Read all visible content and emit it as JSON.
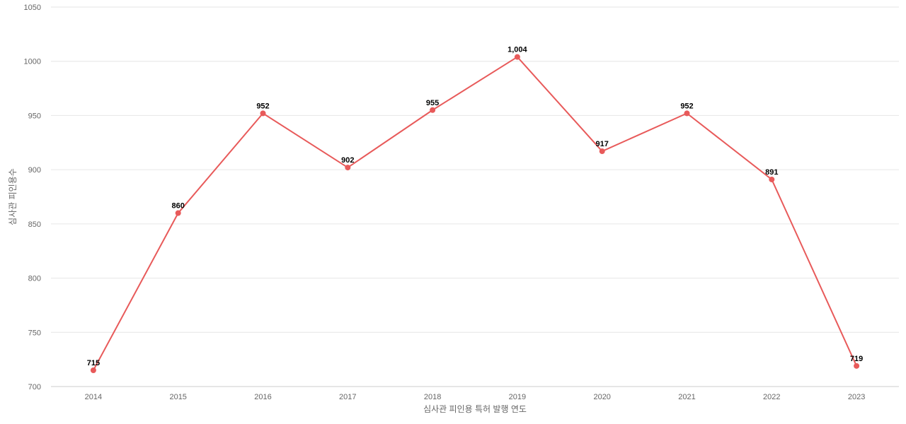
{
  "chart_data": {
    "type": "line",
    "title": "",
    "xlabel": "심사관 피인용 특허 발행 연도",
    "ylabel": "심사관 피인용수",
    "categories": [
      "2014",
      "2015",
      "2016",
      "2017",
      "2018",
      "2019",
      "2020",
      "2021",
      "2022",
      "2023"
    ],
    "series": [
      {
        "values": [
          715,
          860,
          952,
          902,
          955,
          1004,
          917,
          952,
          891,
          719
        ],
        "data_labels": [
          "715",
          "860",
          "952",
          "902",
          "955",
          "1,004",
          "917",
          "952",
          "891",
          "719"
        ]
      }
    ],
    "ylim": [
      700,
      1050
    ],
    "yticks": [
      "700",
      "750",
      "800",
      "850",
      "900",
      "950",
      "1000",
      "1050"
    ],
    "grid": true,
    "legend": "none",
    "colors": {
      "line": "#e85a5a",
      "grid": "#e6e6e6"
    }
  }
}
